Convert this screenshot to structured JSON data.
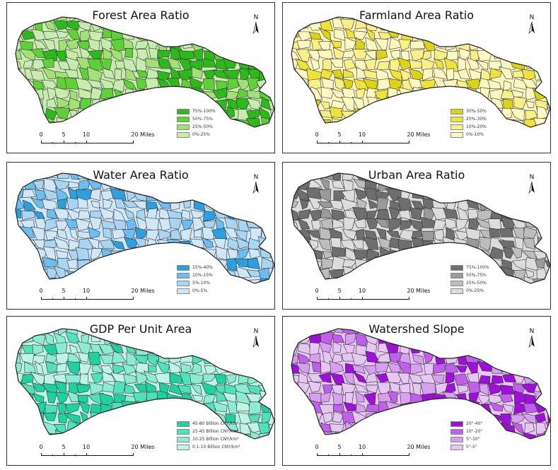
{
  "scale_ticks": [
    "0",
    "5",
    "10",
    "20 Miles"
  ],
  "north_label": "N",
  "panels": [
    {
      "title": "Forest Area Ratio",
      "colors": [
        "#c8ecb0",
        "#a3e07a",
        "#5fd03a",
        "#2fb81e"
      ],
      "legend": [
        {
          "label": "75%-100%",
          "color": "#2fb81e"
        },
        {
          "label": "50%-75%",
          "color": "#5fd03a"
        },
        {
          "label": "25%-50%",
          "color": "#a3e07a"
        },
        {
          "label": "0%-25%",
          "color": "#c8ecb0"
        }
      ]
    },
    {
      "title": "Farmland Area Ratio",
      "colors": [
        "#fdf7c2",
        "#faf08a",
        "#f0e23c",
        "#dcd21a"
      ],
      "legend": [
        {
          "label": "30%-50%",
          "color": "#dcd21a"
        },
        {
          "label": "20%-30%",
          "color": "#f0e23c"
        },
        {
          "label": "10%-20%",
          "color": "#faf08a"
        },
        {
          "label": "0%-10%",
          "color": "#fdf7c2"
        }
      ]
    },
    {
      "title": "Water Area Ratio",
      "colors": [
        "#cfe7f8",
        "#a9d5f3",
        "#6ebdf0",
        "#2f9ee0"
      ],
      "legend": [
        {
          "label": "15%-40%",
          "color": "#2f9ee0"
        },
        {
          "label": "10%-15%",
          "color": "#6ebdf0"
        },
        {
          "label": "5%-10%",
          "color": "#a9d5f3"
        },
        {
          "label": "0%-5%",
          "color": "#cfe7f8"
        }
      ]
    },
    {
      "title": "Urban Area Ratio",
      "colors": [
        "#dcdcdc",
        "#bdbdbd",
        "#9a9a9a",
        "#6e6e6e"
      ],
      "legend": [
        {
          "label": "75%-100%",
          "color": "#6e6e6e"
        },
        {
          "label": "50%-75%",
          "color": "#9a9a9a"
        },
        {
          "label": "25%-50%",
          "color": "#bdbdbd"
        },
        {
          "label": "0%-25%",
          "color": "#dcdcdc"
        }
      ]
    },
    {
      "title": "GDP Per Unit Area",
      "colors": [
        "#bff3e3",
        "#8debd2",
        "#52e0bb",
        "#22cfa0"
      ],
      "legend": [
        {
          "label": "45-80 Billion CNY/km²",
          "color": "#22cfa0"
        },
        {
          "label": "25-45 Billion CNY/km²",
          "color": "#52e0bb"
        },
        {
          "label": "10-25 Billion CNY/km²",
          "color": "#8debd2"
        },
        {
          "label": "0.1-10 Billion CNY/km²",
          "color": "#bff3e3"
        }
      ]
    },
    {
      "title": "Watershed Slope",
      "colors": [
        "#e6c6f3",
        "#d79ff0",
        "#c060ea",
        "#9d10d6"
      ],
      "legend": [
        {
          "label": "20°-40°",
          "color": "#9d10d6"
        },
        {
          "label": "10°-20°",
          "color": "#c060ea"
        },
        {
          "label": "5°-10°",
          "color": "#d79ff0"
        },
        {
          "label": "0°-5°",
          "color": "#e6c6f3"
        }
      ]
    }
  ]
}
